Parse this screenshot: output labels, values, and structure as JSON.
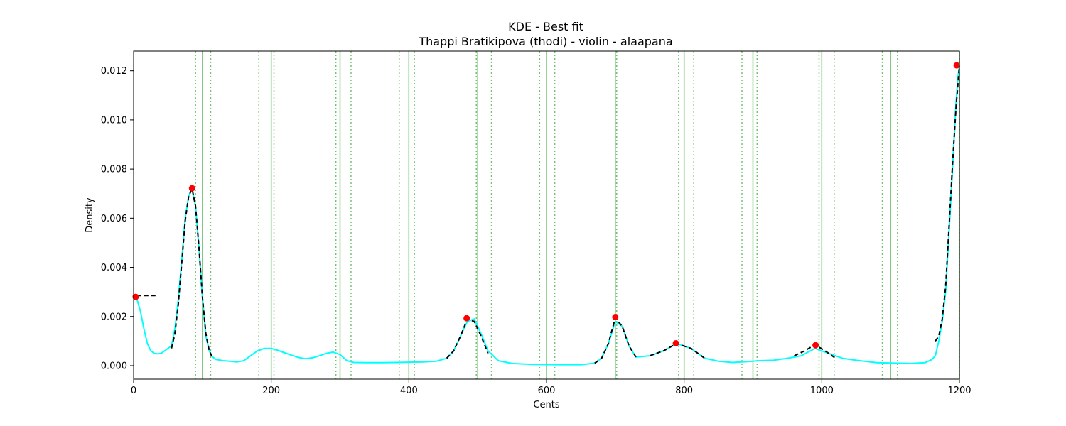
{
  "chart_data": {
    "type": "line",
    "title": "KDE - Best fit",
    "subtitle": "Thappi Bratikipova (thodi) - violin - alaapana",
    "xlabel": "Cents",
    "ylabel": "Density",
    "xlim": [
      0,
      1200
    ],
    "ylim": [
      -0.00055,
      0.0128
    ],
    "x_ticks": [
      0,
      200,
      400,
      600,
      800,
      1000,
      1200
    ],
    "x_tick_labels": [
      "0",
      "200",
      "400",
      "600",
      "800",
      "1000",
      "1200"
    ],
    "y_ticks": [
      0.0,
      0.002,
      0.004,
      0.006,
      0.008,
      0.01,
      0.012
    ],
    "y_tick_labels": [
      "0.000",
      "0.002",
      "0.004",
      "0.006",
      "0.008",
      "0.010",
      "0.012"
    ],
    "grid": false,
    "colors": {
      "kde": "#00ffff",
      "fit": "#000000",
      "peaks": "#ff0000",
      "reference_lines": "#5cb85c"
    },
    "reference_lines": {
      "solid": [
        100,
        200,
        300,
        400,
        500,
        600,
        700,
        800,
        900,
        1000,
        1100,
        1200
      ],
      "dotted": [
        90,
        112,
        182,
        204,
        294,
        316,
        386,
        408,
        498,
        520,
        590,
        612,
        700,
        702,
        792,
        814,
        884,
        906,
        996,
        1018,
        1088,
        1110,
        1200
      ]
    },
    "kde_curve": {
      "x": [
        5,
        10,
        15,
        20,
        25,
        30,
        35,
        40,
        45,
        50,
        55,
        60,
        65,
        70,
        75,
        80,
        85,
        90,
        95,
        100,
        105,
        110,
        115,
        120,
        130,
        140,
        150,
        160,
        170,
        180,
        190,
        200,
        210,
        220,
        230,
        240,
        250,
        260,
        270,
        280,
        290,
        300,
        310,
        320,
        340,
        360,
        380,
        400,
        420,
        440,
        455,
        465,
        475,
        485,
        495,
        505,
        515,
        530,
        550,
        580,
        620,
        650,
        670,
        680,
        690,
        700,
        710,
        720,
        730,
        750,
        770,
        789,
        810,
        830,
        850,
        870,
        890,
        910,
        930,
        950,
        970,
        990,
        1010,
        1030,
        1050,
        1080,
        1110,
        1130,
        1150,
        1160,
        1165,
        1170,
        1175,
        1180,
        1185,
        1190,
        1195,
        1198,
        1200
      ],
      "y": [
        0.0027,
        0.0022,
        0.0015,
        0.0009,
        0.0006,
        0.0005,
        0.00048,
        0.0005,
        0.0006,
        0.0007,
        0.0008,
        0.0015,
        0.0027,
        0.0043,
        0.006,
        0.0069,
        0.0072,
        0.0065,
        0.0048,
        0.0028,
        0.0012,
        0.0006,
        0.00035,
        0.00025,
        0.0002,
        0.00018,
        0.00015,
        0.0002,
        0.0004,
        0.0006,
        0.0007,
        0.0007,
        0.00062,
        0.00052,
        0.00042,
        0.00033,
        0.00028,
        0.00032,
        0.0004,
        0.0005,
        0.00055,
        0.00045,
        0.0002,
        0.00013,
        0.00012,
        0.00012,
        0.00013,
        0.00014,
        0.00015,
        0.00018,
        0.0003,
        0.0006,
        0.0012,
        0.0018,
        0.0019,
        0.0013,
        0.0006,
        0.0002,
        9e-05,
        5e-05,
        4e-05,
        4e-05,
        0.0001,
        0.0003,
        0.0009,
        0.0018,
        0.0016,
        0.0008,
        0.00035,
        0.0004,
        0.0006,
        0.0009,
        0.0007,
        0.0003,
        0.00018,
        0.00013,
        0.00016,
        0.0002,
        0.00022,
        0.0003,
        0.0004,
        0.0007,
        0.0005,
        0.0003,
        0.00022,
        0.00012,
        0.0001,
        9e-05,
        0.00012,
        0.00025,
        0.0004,
        0.001,
        0.0018,
        0.003,
        0.0055,
        0.008,
        0.0107,
        0.0118,
        0.0122
      ]
    },
    "fit_segments": [
      {
        "x": [
          5,
          35
        ],
        "y": [
          0.00285,
          0.00285
        ]
      },
      {
        "x": [
          55,
          60,
          65,
          70,
          75,
          80,
          85,
          90,
          95,
          100,
          105,
          110,
          115
        ],
        "y": [
          0.0007,
          0.0013,
          0.0025,
          0.0042,
          0.0059,
          0.0069,
          0.0072,
          0.0065,
          0.0048,
          0.0028,
          0.0013,
          0.0006,
          0.0003
        ]
      },
      {
        "x": [
          455,
          465,
          475,
          485,
          495,
          505,
          515
        ],
        "y": [
          0.0003,
          0.0006,
          0.0012,
          0.0019,
          0.0018,
          0.0012,
          0.0005
        ]
      },
      {
        "x": [
          670,
          680,
          690,
          700,
          710,
          720,
          730
        ],
        "y": [
          0.0001,
          0.0003,
          0.0009,
          0.00195,
          0.0016,
          0.0008,
          0.00035
        ]
      },
      {
        "x": [
          750,
          770,
          789,
          810,
          830
        ],
        "y": [
          0.0004,
          0.0006,
          0.0009,
          0.0007,
          0.0003
        ]
      },
      {
        "x": [
          960,
          975,
          990,
          1005,
          1020
        ],
        "y": [
          0.0004,
          0.0006,
          0.00085,
          0.0006,
          0.0003
        ]
      },
      {
        "x": [
          1165,
          1170,
          1175,
          1180,
          1185,
          1190,
          1195,
          1200
        ],
        "y": [
          0.001,
          0.0012,
          0.0019,
          0.0032,
          0.0057,
          0.0082,
          0.0105,
          0.0122
        ]
      }
    ],
    "peaks": {
      "x": [
        3,
        85,
        484,
        700,
        788,
        991,
        1196
      ],
      "y": [
        0.0028,
        0.00722,
        0.00193,
        0.00198,
        0.00091,
        0.00083,
        0.01222
      ]
    }
  }
}
